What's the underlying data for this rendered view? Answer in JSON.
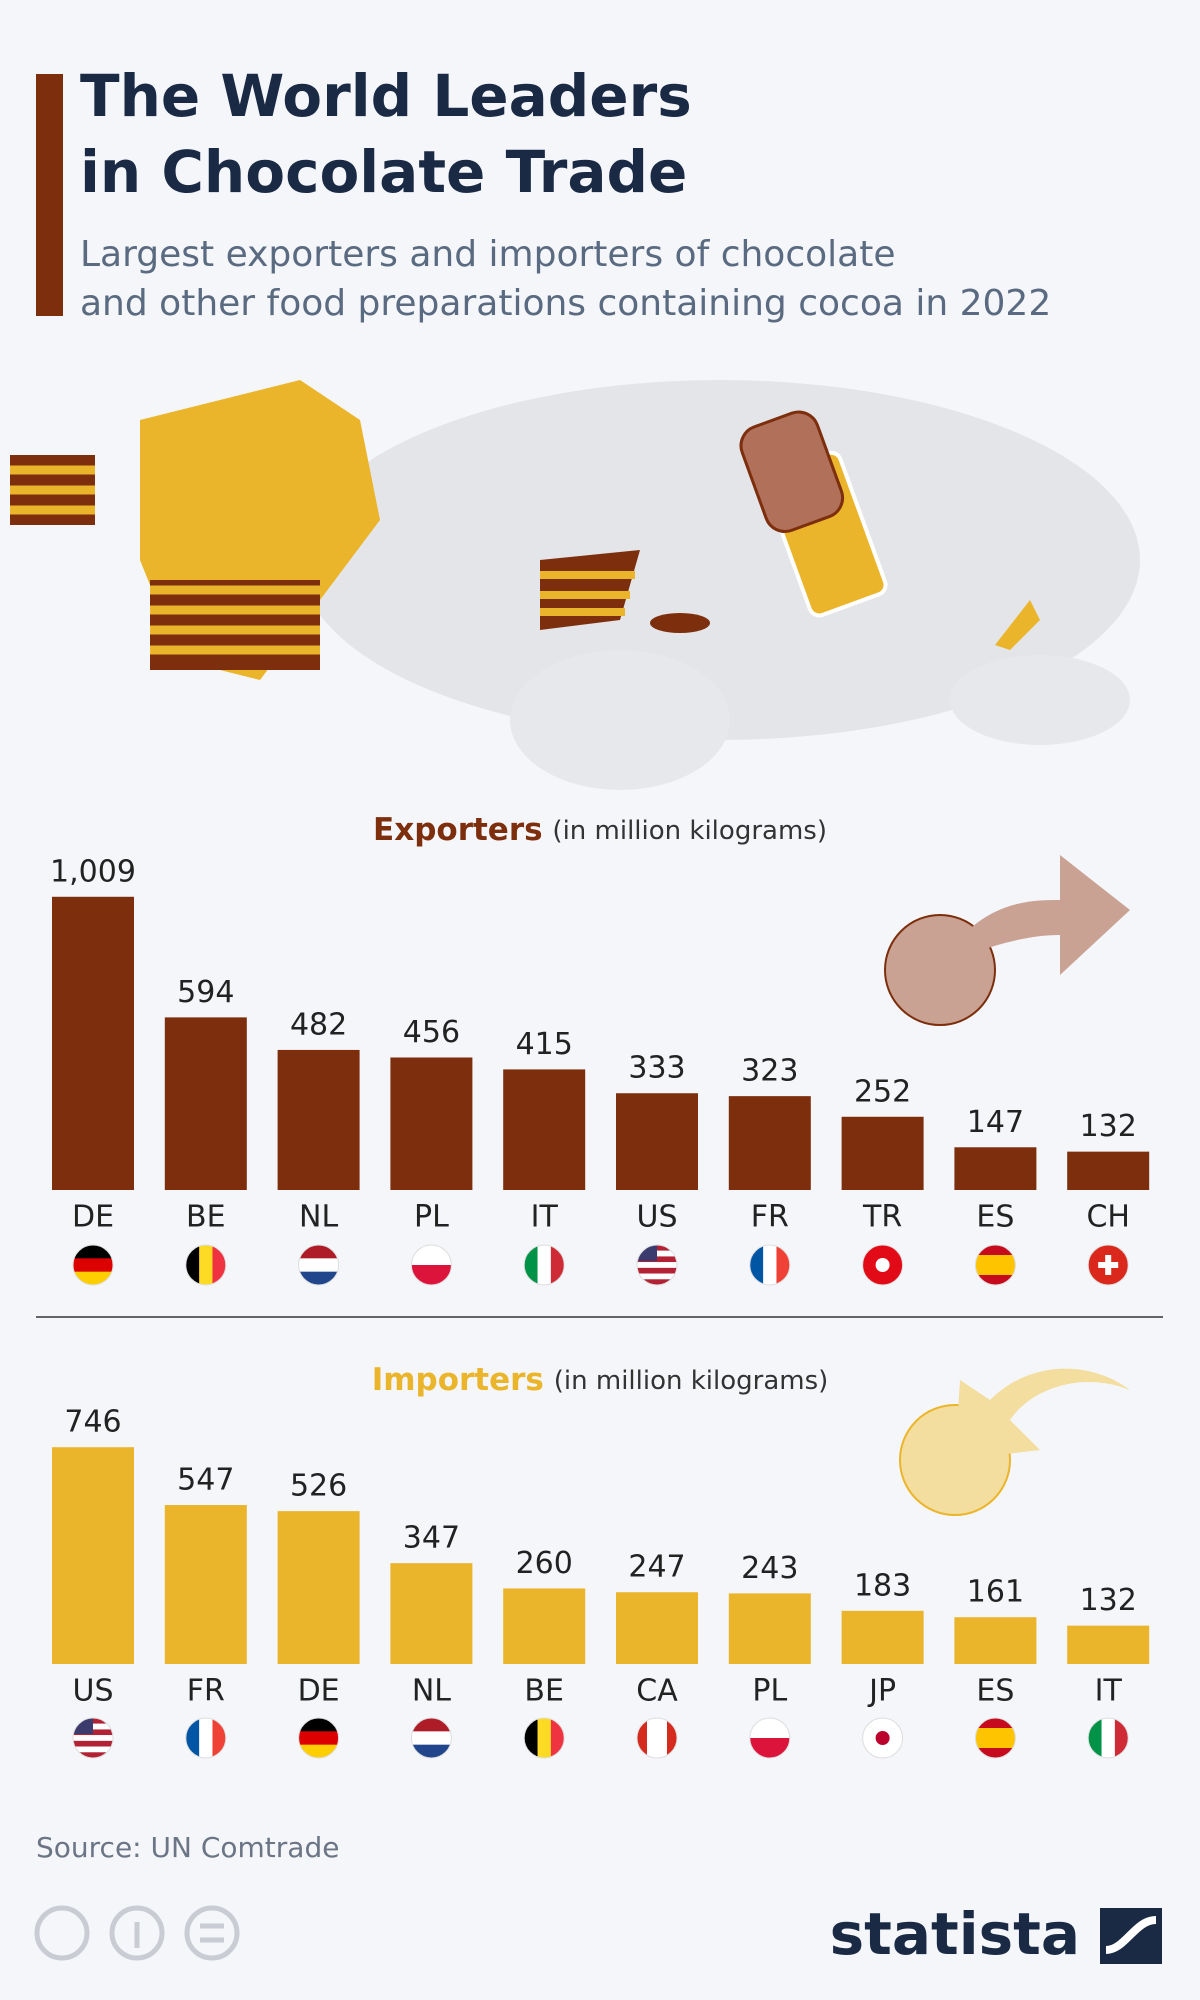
{
  "header": {
    "title": [
      "The World Leaders",
      "in Chocolate Trade"
    ],
    "subtitle": [
      "Largest exporters and importers of chocolate",
      "and other food preparations containing cocoa in 2022"
    ]
  },
  "chart_data": [
    {
      "type": "bar",
      "title": "Exporters",
      "subtitle": "(in million kilograms)",
      "color": "#7d2e0c",
      "categories": [
        "DE",
        "BE",
        "NL",
        "PL",
        "IT",
        "US",
        "FR",
        "TR",
        "ES",
        "CH"
      ],
      "values": [
        1009,
        594,
        482,
        456,
        415,
        333,
        323,
        252,
        147,
        132
      ],
      "value_labels": [
        "1,009",
        "594",
        "482",
        "456",
        "415",
        "333",
        "323",
        "252",
        "147",
        "132"
      ]
    },
    {
      "type": "bar",
      "title": "Importers",
      "subtitle": "(in million kilograms)",
      "color": "#ebb52b",
      "categories": [
        "US",
        "FR",
        "DE",
        "NL",
        "BE",
        "CA",
        "PL",
        "JP",
        "ES",
        "IT"
      ],
      "values": [
        746,
        547,
        526,
        347,
        260,
        247,
        243,
        183,
        161,
        132
      ],
      "value_labels": [
        "746",
        "547",
        "526",
        "347",
        "260",
        "247",
        "243",
        "183",
        "161",
        "132"
      ]
    }
  ],
  "footer": {
    "source": "Source: UN Comtrade",
    "brand": "statista"
  }
}
